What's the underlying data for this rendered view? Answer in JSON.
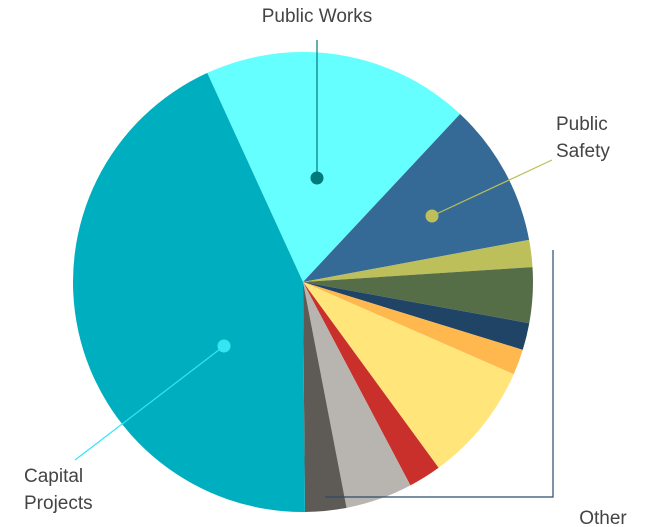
{
  "chart_data": {
    "type": "pie",
    "categories": [
      "Public Works",
      "Public Safety",
      null,
      null,
      null,
      null,
      null,
      null,
      null,
      null,
      "Capital Projects"
    ],
    "values": [
      18.8,
      10.1,
      1.9,
      3.9,
      1.9,
      1.8,
      8.4,
      2.3,
      4.7,
      2.9,
      43.3
    ],
    "colors": [
      "#66ffff",
      "#366a96",
      "#bcbf5a",
      "#566e48",
      "#1f4466",
      "#ffb84d",
      "#ffe57a",
      "#c9302c",
      "#b8b5b0",
      "#5e5a55",
      "#00afbf"
    ],
    "group_label": "Other"
  }
}
